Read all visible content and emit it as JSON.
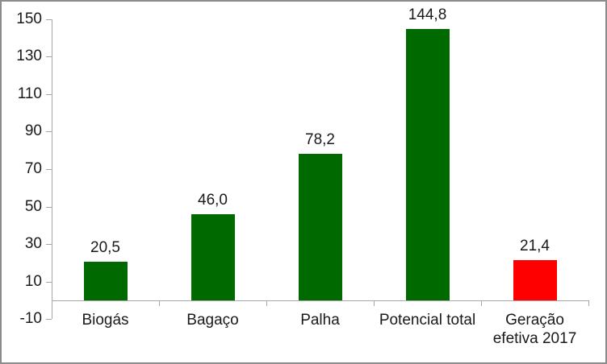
{
  "chart_data": {
    "type": "bar",
    "title": "",
    "xlabel": "",
    "ylabel": "",
    "categories": [
      "Biogás",
      "Bagaço",
      "Palha",
      "Potencial total",
      "Geração efetiva 2017"
    ],
    "category_display": [
      "Biogás",
      "Bagaço",
      "Palha",
      "Potencial total",
      "Geração\nefetiva 2017"
    ],
    "values": [
      20.5,
      46.0,
      78.2,
      144.8,
      21.4
    ],
    "value_labels": [
      "20,5",
      "46,0",
      "78,2",
      "144,8",
      "21,4"
    ],
    "bar_colors": [
      "#006a00",
      "#006a00",
      "#006a00",
      "#006a00",
      "#ff0000"
    ],
    "ylim": [
      -10,
      150
    ],
    "yticks": [
      150,
      130,
      110,
      90,
      70,
      50,
      30,
      10,
      -10
    ],
    "ytick_labels": [
      "150",
      "130",
      "110",
      "90",
      "70",
      "50",
      "30",
      "10",
      "-10"
    ],
    "grid": false,
    "legend": "none",
    "decimal_separator": ","
  },
  "colors": {
    "bar_green": "#006a00",
    "bar_red": "#ff0000",
    "axis_line": "#a6a6a6",
    "text": "#1a1a1a",
    "frame_border": "#8c8c8c",
    "background": "#ffffff"
  }
}
